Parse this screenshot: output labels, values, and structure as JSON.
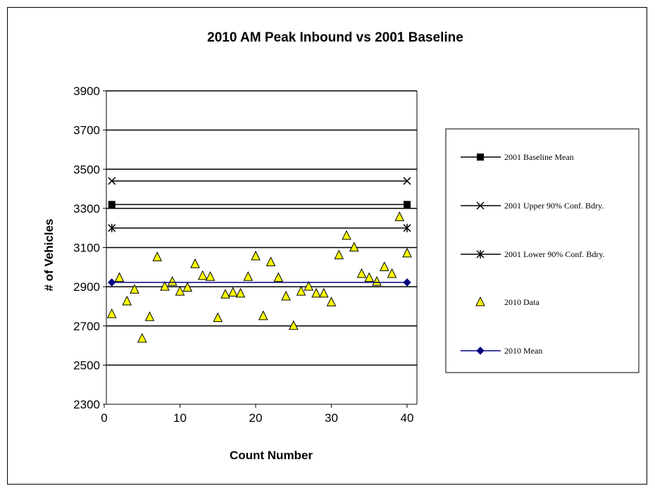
{
  "chart_data": {
    "type": "scatter",
    "title": "2010 AM Peak Inbound vs 2001  Baseline",
    "xlabel": "Count  Number",
    "ylabel": "# of Vehicles",
    "xlim": [
      0,
      40
    ],
    "ylim": [
      2300,
      3900
    ],
    "xticks": [
      0,
      10,
      20,
      30,
      40
    ],
    "yticks": [
      2300,
      2500,
      2700,
      2900,
      3100,
      3300,
      3500,
      3700,
      3900
    ],
    "grid": "horizontal major gridlines",
    "legend_position": "right",
    "series": [
      {
        "name": "2001 Baseline Mean",
        "kind": "line",
        "marker": "square",
        "color": "#000000",
        "x": [
          1,
          40
        ],
        "y": [
          3320,
          3320
        ]
      },
      {
        "name": "2001 Upper 90% Conf. Bdry.",
        "kind": "line",
        "marker": "x",
        "color": "#000000",
        "x": [
          1,
          40
        ],
        "y": [
          3440,
          3440
        ]
      },
      {
        "name": "2001 Lower 90% Conf. Bdry.",
        "kind": "line",
        "marker": "star",
        "color": "#000000",
        "x": [
          1,
          40
        ],
        "y": [
          3200,
          3200
        ]
      },
      {
        "name": "2010 Data",
        "kind": "scatter",
        "marker": "triangle",
        "color": "#ffff00",
        "x": [
          1,
          2,
          3,
          4,
          5,
          6,
          7,
          8,
          9,
          10,
          11,
          12,
          13,
          14,
          15,
          16,
          17,
          18,
          19,
          20,
          21,
          22,
          23,
          24,
          25,
          26,
          27,
          28,
          29,
          30,
          31,
          32,
          33,
          34,
          35,
          36,
          37,
          38,
          39,
          40
        ],
        "y": [
          2760,
          2945,
          2825,
          2885,
          2635,
          2745,
          3050,
          2900,
          2925,
          2875,
          2895,
          3015,
          2955,
          2950,
          2740,
          2860,
          2870,
          2865,
          2950,
          3055,
          2750,
          3025,
          2945,
          2850,
          2700,
          2875,
          2900,
          2865,
          2865,
          2820,
          3060,
          3160,
          3100,
          2965,
          2945,
          2925,
          3000,
          2965,
          3255,
          3070
        ]
      },
      {
        "name": "2010 Mean",
        "kind": "line",
        "marker": "diamond",
        "color": "#000080",
        "x": [
          1,
          40
        ],
        "y": [
          2922,
          2922
        ]
      }
    ]
  }
}
